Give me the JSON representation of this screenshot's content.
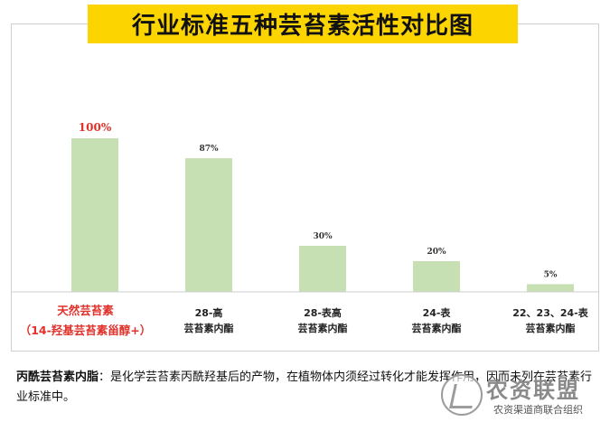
{
  "title": "行业标准五种芸苔素活性对比图",
  "chart_data": {
    "type": "bar",
    "title": "行业标准五种芸苔素活性对比图",
    "categories": [
      [
        "天然芸苔素",
        "（14-羟基芸苔素甾醇+）"
      ],
      [
        "28-高",
        "芸苔素内酯"
      ],
      [
        "28-表高",
        "芸苔素内酯"
      ],
      [
        "24-表",
        "芸苔素内酯"
      ],
      [
        "22、23、24-表",
        "芸苔素内酯"
      ]
    ],
    "values": [
      100,
      87,
      30,
      20,
      5
    ],
    "data_labels": [
      "100%",
      "87%",
      "30%",
      "20%",
      "5%"
    ],
    "ylim": [
      0,
      100
    ],
    "grid": false,
    "bar_color": "#c6e0b4",
    "highlight_color": "#e0312a"
  },
  "note": {
    "term": "丙酰芸苔素内脂",
    "text": "：是化学芸苔素丙酰羟基后的产物，在植物体内须经过转化才能发挥作用，因而未列在芸苔素行业标准中。"
  },
  "watermark": {
    "title": "农资联盟",
    "subtitle": "农资渠道商联合组织"
  }
}
